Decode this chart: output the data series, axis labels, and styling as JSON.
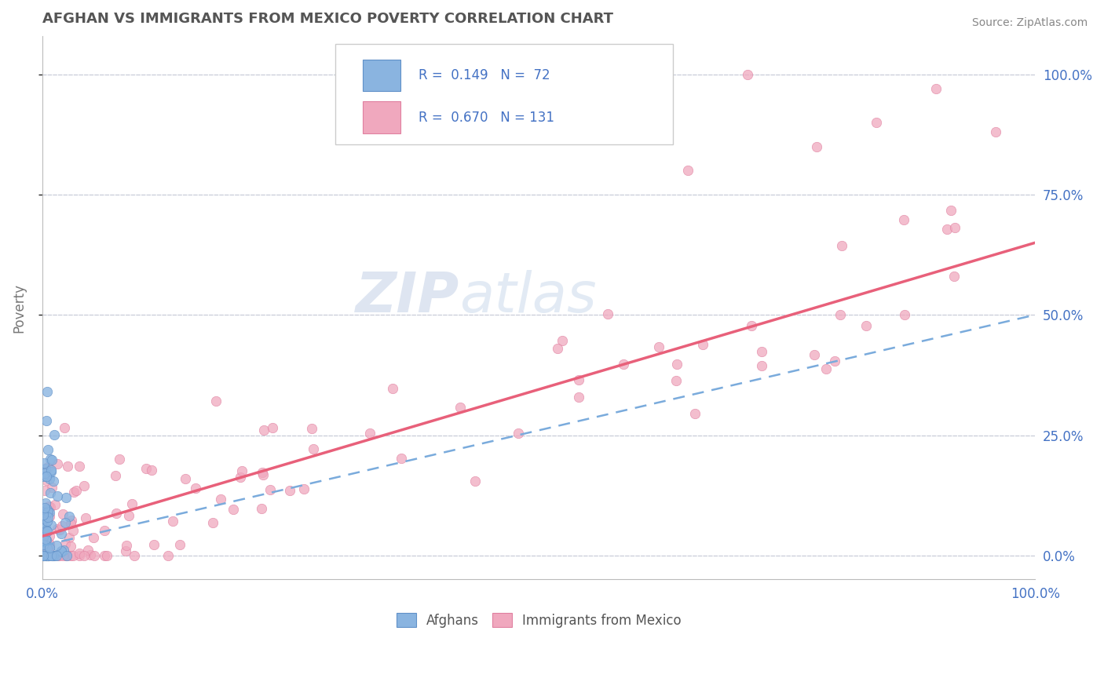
{
  "title": "AFGHAN VS IMMIGRANTS FROM MEXICO POVERTY CORRELATION CHART",
  "source": "Source: ZipAtlas.com",
  "ylabel": "Poverty",
  "afghans_color": "#8ab4e0",
  "afghans_edge": "#6090c8",
  "mexicans_color": "#f0a8be",
  "mexicans_edge": "#e080a0",
  "trend_afghan_color": "#7aabdc",
  "trend_mexico_color": "#e8607a",
  "background_color": "#ffffff",
  "grid_color": "#c8ccd8",
  "watermark_color": "#c8d4e8",
  "R_afghan": 0.149,
  "N_afghan": 72,
  "R_mexico": 0.67,
  "N_mexico": 131,
  "legend_box_color": "#ffffff",
  "legend_border_color": "#cccccc",
  "tick_color": "#4472c4",
  "title_color": "#555555",
  "source_color": "#888888",
  "ylabel_color": "#777777",
  "afghan_trend_intercept": 0.02,
  "afghan_trend_slope": 0.48,
  "mexico_trend_intercept": 0.04,
  "mexico_trend_slope": 0.61
}
